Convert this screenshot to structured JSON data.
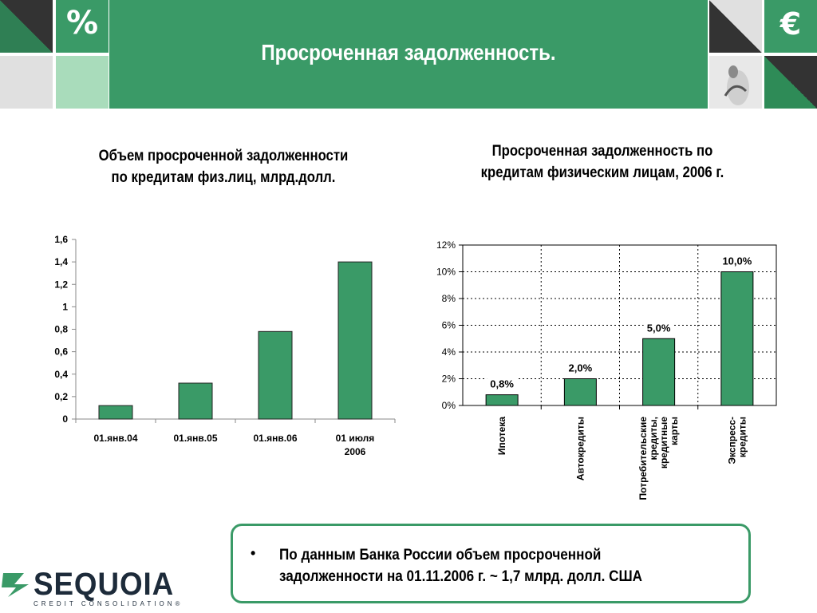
{
  "header": {
    "title": "Просроченная задолженность.",
    "percent_symbol": "%",
    "euro_symbol": "€"
  },
  "colors": {
    "brand_green": "#3a9a67",
    "bar_fill": "#3a9a67",
    "dark_tile": "#333333",
    "light_tile": "#e0e0e0",
    "pale_green_tile": "#a9dcbb"
  },
  "note": {
    "bullet": "•",
    "text": "По данным Банка России объем просроченной задолженности на 01.11.2006 г. ~ 1,7 млрд. долл. США"
  },
  "logo": {
    "name": "SEQUOIA",
    "sub": "CREDIT CONSOLIDATION®"
  },
  "chart_data": [
    {
      "type": "bar",
      "title": "Объем просроченной задолженности по кредитам физ.лиц, млрд.долл.",
      "categories": [
        "01.янв.04",
        "01.янв.05",
        "01.янв.06",
        "01 июля 2006"
      ],
      "values": [
        0.12,
        0.32,
        0.78,
        1.4
      ],
      "ylim": [
        0,
        1.6
      ],
      "yticks": [
        "0",
        "0,2",
        "0,4",
        "0,6",
        "0,8",
        "1",
        "1,2",
        "1,4",
        "1,6"
      ],
      "xlabel": "",
      "ylabel": "",
      "grid": false,
      "legend": "none"
    },
    {
      "type": "bar",
      "title": "Просроченная задолженность по кредитам физическим лицам, 2006 г.",
      "categories": [
        "Ипотека",
        "Автокредиты",
        "Потребительские кредиты, кредитные карты",
        "Экспресс-кредиты"
      ],
      "values": [
        0.8,
        2.0,
        5.0,
        10.0
      ],
      "data_labels": [
        "0,8%",
        "2,0%",
        "5,0%",
        "10,0%"
      ],
      "ylim": [
        0,
        12
      ],
      "yticks": [
        "0%",
        "2%",
        "4%",
        "6%",
        "8%",
        "10%",
        "12%"
      ],
      "xlabel": "",
      "ylabel": "",
      "grid": true,
      "legend": "none"
    }
  ]
}
